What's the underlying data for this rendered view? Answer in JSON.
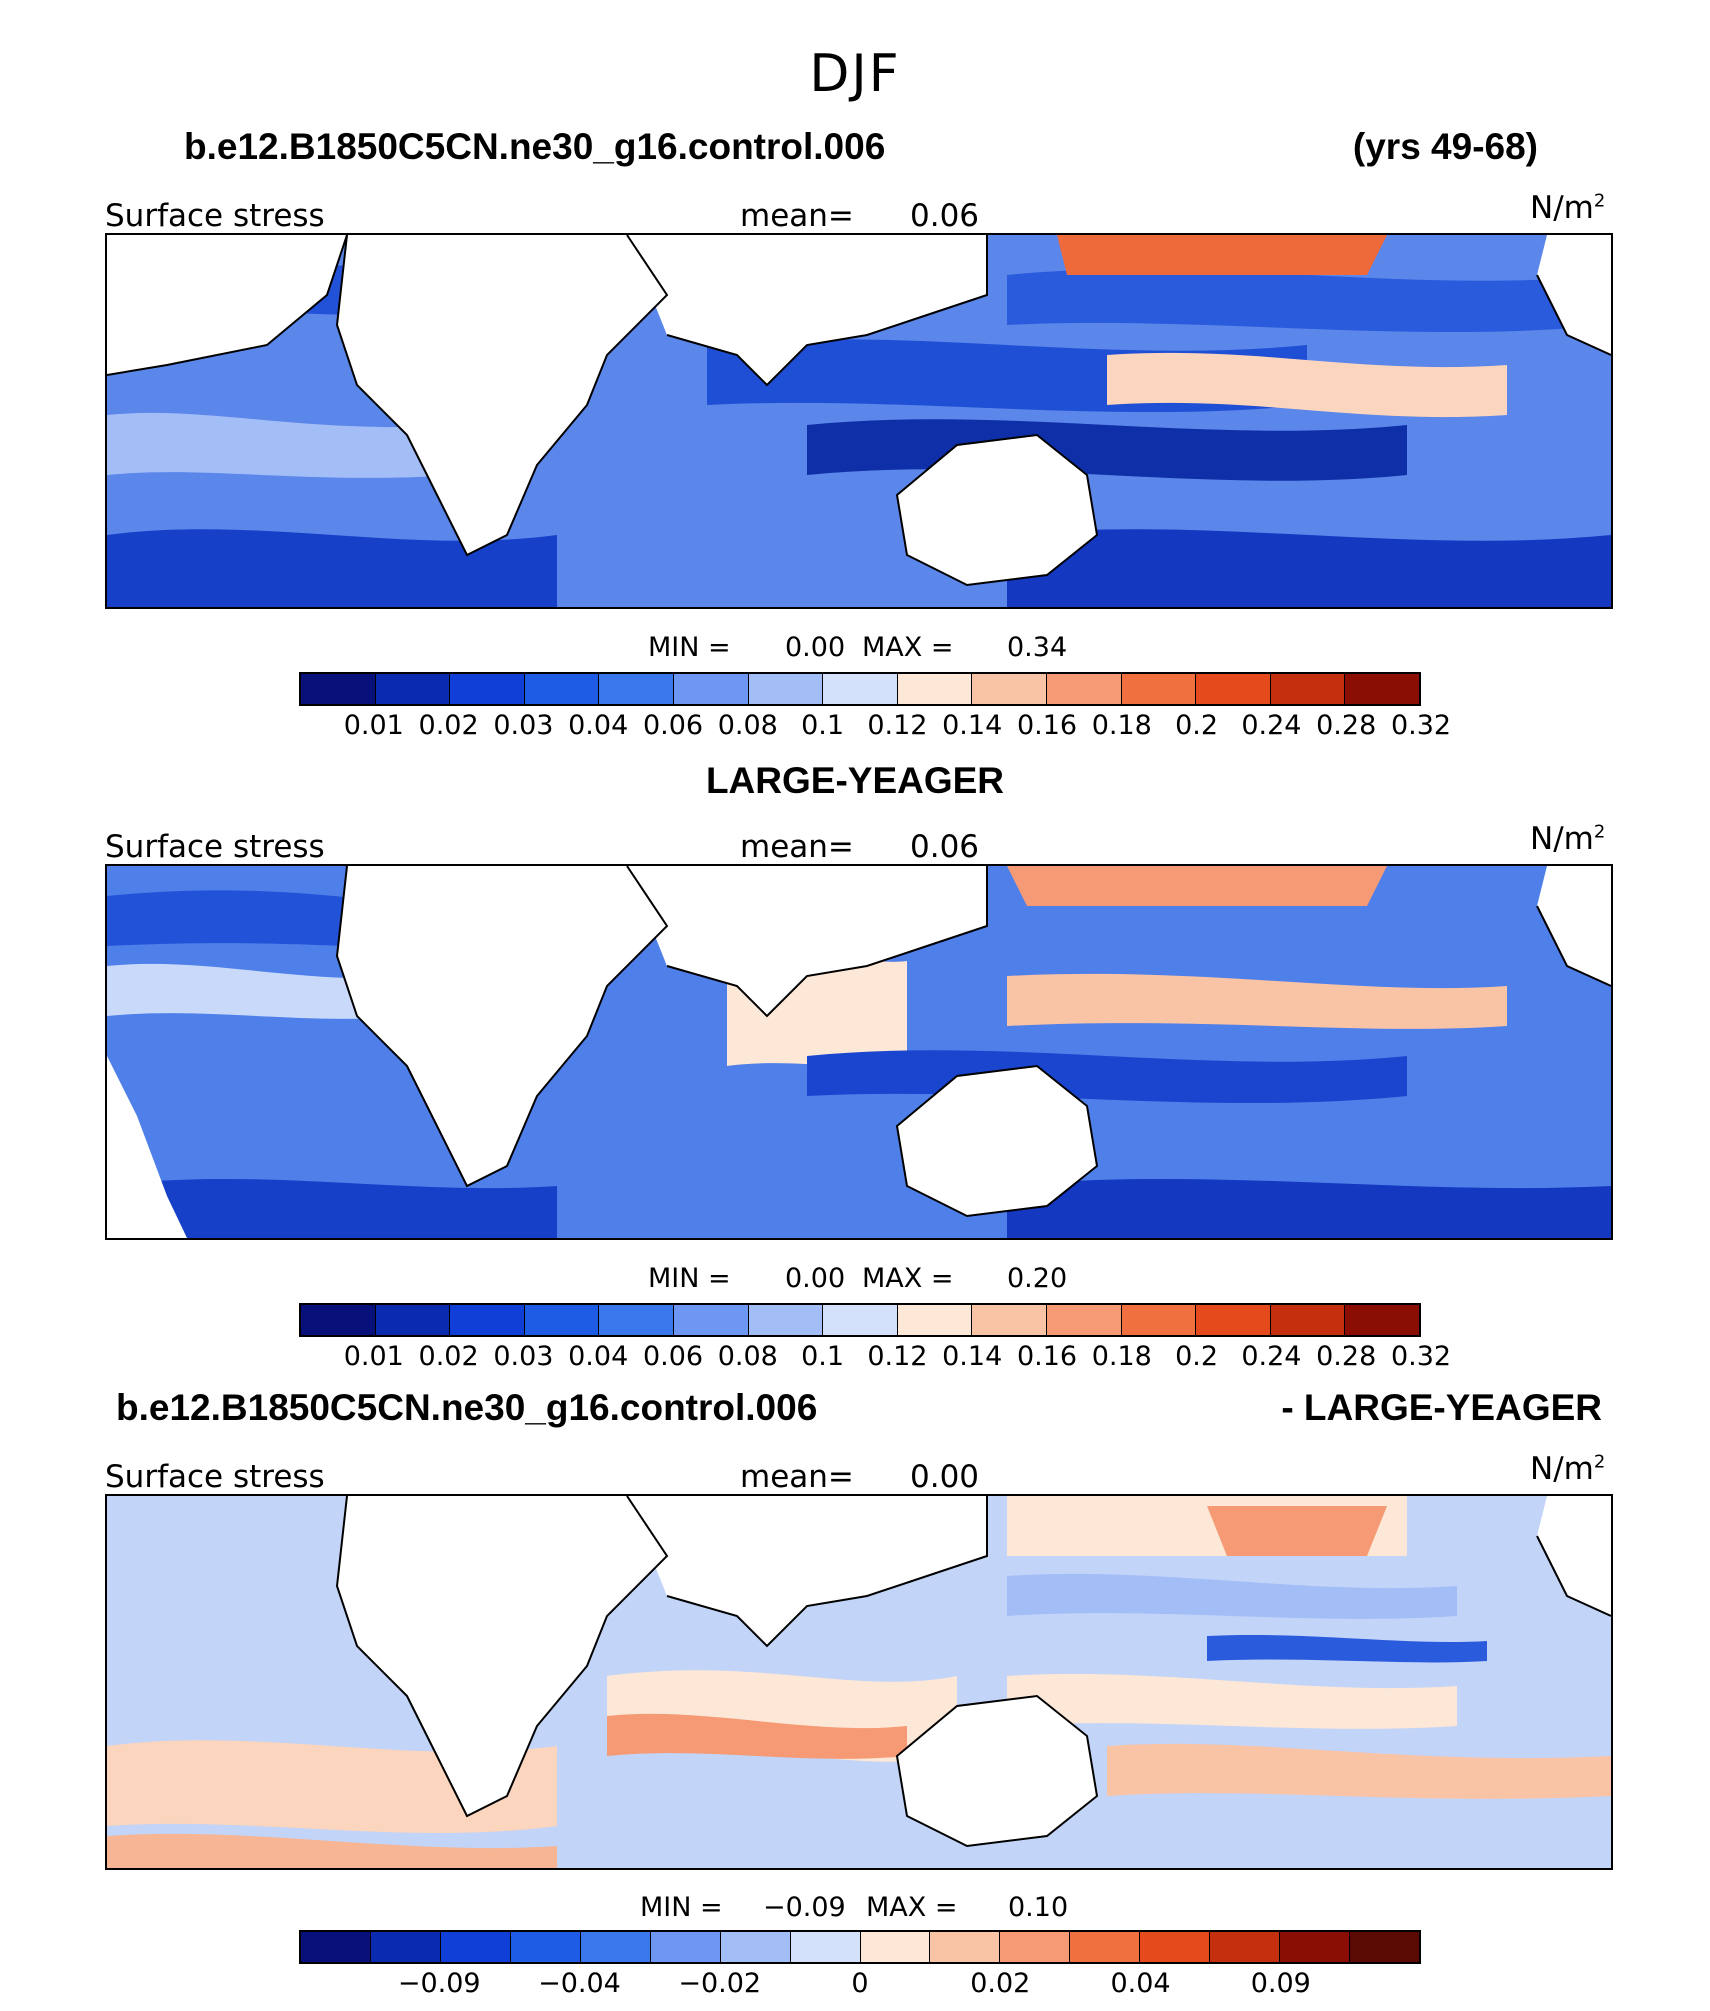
{
  "title": "DJF",
  "panels": [
    {
      "header_left": "b.e12.B1850C5CN.ne30_g16.control.006",
      "header_right": "(yrs 49-68)",
      "variable": "Surface stress",
      "mean_label": "mean=",
      "mean_value": "0.06",
      "units": "N/m",
      "units_exp": "2",
      "min_label": "MIN =",
      "min_value": "0.00",
      "max_label": "MAX =",
      "max_value": "0.34",
      "colorbar_ticks": [
        "0.01",
        "0.02",
        "0.03",
        "0.04",
        "0.06",
        "0.08",
        "0.1",
        "0.12",
        "0.14",
        "0.16",
        "0.18",
        "0.2",
        "0.24",
        "0.28",
        "0.32"
      ]
    },
    {
      "header_center": "LARGE-YEAGER",
      "variable": "Surface stress",
      "mean_label": "mean=",
      "mean_value": "0.06",
      "units": "N/m",
      "units_exp": "2",
      "min_label": "MIN =",
      "min_value": "0.00",
      "max_label": "MAX =",
      "max_value": "0.20",
      "colorbar_ticks": [
        "0.01",
        "0.02",
        "0.03",
        "0.04",
        "0.06",
        "0.08",
        "0.1",
        "0.12",
        "0.14",
        "0.16",
        "0.18",
        "0.2",
        "0.24",
        "0.28",
        "0.32"
      ]
    },
    {
      "header_left": "b.e12.B1850C5CN.ne30_g16.control.006",
      "header_right": "- LARGE-YEAGER",
      "variable": "Surface stress",
      "mean_label": "mean=",
      "mean_value": "0.00",
      "units": "N/m",
      "units_exp": "2",
      "min_label": "MIN =",
      "min_value": "−0.09",
      "max_label": "MAX =",
      "max_value": "0.10",
      "colorbar_ticks": [
        "−0.09",
        "−0.04",
        "−0.02",
        "0",
        "0.02",
        "0.04",
        "0.09"
      ]
    }
  ],
  "colors": {
    "sequential": [
      "#08107a",
      "#0a2bb0",
      "#0f3fd6",
      "#1f5ce6",
      "#3a76ec",
      "#6d97f2",
      "#a3bdf6",
      "#d3e1fb",
      "#fde7d6",
      "#f9c3a6",
      "#f59a74",
      "#f0703f",
      "#e54a1c",
      "#c4300e",
      "#8b0e05"
    ],
    "diverging": [
      "#08107a",
      "#0a2bb0",
      "#0f3fd6",
      "#1f5ce6",
      "#3a76ec",
      "#6d97f2",
      "#a3bdf6",
      "#d3e1fb",
      "#fde7d6",
      "#f9c3a6",
      "#f59a74",
      "#f0703f",
      "#e54a1c",
      "#c4300e",
      "#8b0e05",
      "#5a0a02"
    ]
  }
}
